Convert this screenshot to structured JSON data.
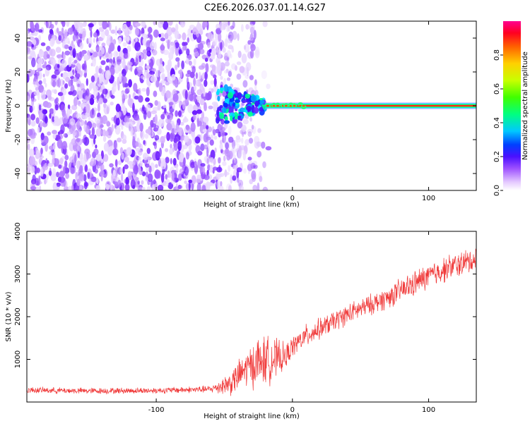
{
  "page_title": "C2E6.2026.037.01.14.G27",
  "chart_data": [
    {
      "type": "heatmap",
      "title": "C2E6.2026.037.01.14.G27",
      "xlabel": "Height of straight line (km)",
      "ylabel": "Frequency (Hz)",
      "xlim": [
        -195,
        135
      ],
      "ylim": [
        -50,
        50
      ],
      "x_ticks": [
        -100,
        0,
        100
      ],
      "x_tick_labels": [
        "-100",
        "0",
        "100"
      ],
      "y_ticks": [
        -40,
        -20,
        0,
        20,
        40
      ],
      "y_tick_labels": [
        "-40",
        "-20",
        "0",
        "20",
        "40"
      ],
      "colorbar": {
        "label": "Normalized spectral amplitude",
        "range": [
          0,
          1
        ],
        "ticks": [
          0,
          0.2,
          0.4,
          0.6,
          0.8
        ],
        "tick_labels": [
          "0.0",
          "0.2",
          "0.4",
          "0.6",
          "0.8"
        ]
      },
      "features": {
        "noise_region_x": [
          -195,
          -50
        ],
        "noise_fade_x": [
          -50,
          -20
        ],
        "signal_line_frequency": 0,
        "signal_line_x": [
          -20,
          135
        ],
        "scatter_region_x": [
          -55,
          -20
        ],
        "scatter_region_freq": [
          -12,
          12
        ]
      },
      "grid": false
    },
    {
      "type": "line",
      "xlabel": "Height of straight line (km)",
      "ylabel": "SNR (10 * v/v)",
      "xlim": [
        -195,
        135
      ],
      "ylim": [
        0,
        4000
      ],
      "x_ticks": [
        -100,
        0,
        100
      ],
      "x_tick_labels": [
        "-100",
        "0",
        "100"
      ],
      "y_ticks": [
        1000,
        2000,
        3000,
        4000
      ],
      "y_tick_labels": [
        "1000",
        "2000",
        "3000",
        "4000"
      ],
      "color": "#f03a3a",
      "series": [
        {
          "x": [
            -195,
            -150,
            -100,
            -60,
            -45,
            -35,
            -25,
            -15,
            -5,
            0,
            10,
            25,
            40,
            55,
            70,
            85,
            100,
            115,
            135
          ],
          "y": [
            280,
            260,
            270,
            300,
            450,
            750,
            950,
            1000,
            1050,
            1300,
            1550,
            1800,
            2050,
            2250,
            2450,
            2700,
            2950,
            3150,
            3350
          ],
          "noise": [
            60,
            60,
            60,
            70,
            250,
            350,
            500,
            450,
            250,
            200,
            220,
            200,
            200,
            200,
            220,
            250,
            250,
            250,
            250
          ]
        }
      ],
      "grid": false
    }
  ]
}
